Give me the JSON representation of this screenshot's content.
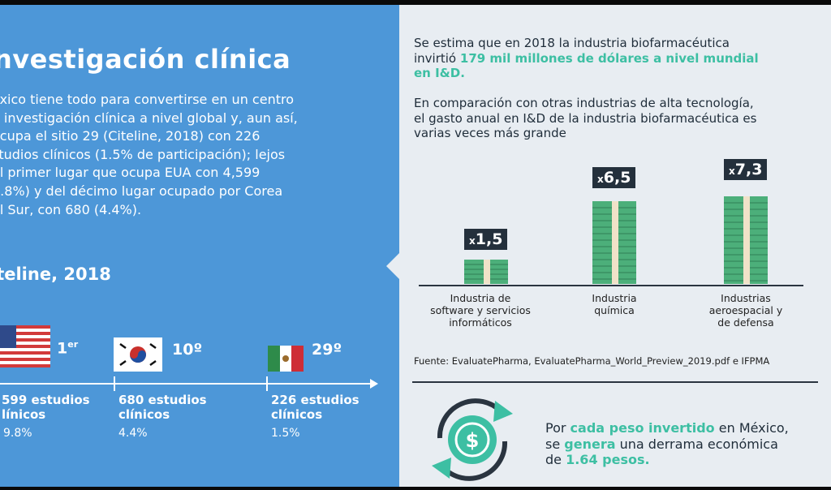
{
  "left": {
    "title": "nvestigación clínica",
    "paragraph_lines": [
      "éxico tiene todo para convertirse en un centro",
      "e investigación clínica a nivel global y, aun así,",
      "ocupa el sitio 29 (Citeline, 2018) con 226",
      "studios clínicos (1.5% de participación); lejos",
      "el primer lugar que ocupa EUA con 4,599",
      "9.8%) y del décimo lugar ocupado por Corea",
      "el Sur, con 680 (4.4%)."
    ],
    "subtitle": "iteline, 2018",
    "ranks": [
      {
        "rank": "1",
        "sup": "er",
        "studies_line1": "599 estudios",
        "studies_line2": "línicos",
        "pct": "9.8%"
      },
      {
        "rank": "10º",
        "sup": "",
        "studies_line1": "680 estudios",
        "studies_line2": "clínicos",
        "pct": "4.4%"
      },
      {
        "rank": "29º",
        "sup": "",
        "studies_line1": "226 estudios",
        "studies_line2": "clínicos",
        "pct": "1.5%"
      }
    ]
  },
  "right": {
    "intro_line1": "Se estima que en 2018 la industria biofarmacéutica",
    "intro_line2_pre": "invirtió ",
    "intro_line2_hl": "179 mil millones de dólares a nivel mundial",
    "intro_line3_hl": "en I&D.",
    "compare_lines": [
      "En comparación con otras industrias de alta tecnología,",
      "el gasto anual en I&D de la industria biofarmacéutica es",
      "varias veces más grande"
    ],
    "bars": [
      {
        "prefix": "x",
        "value": "1,5",
        "label_lines": [
          "Industria de",
          "software y servicios",
          "informáticos"
        ]
      },
      {
        "prefix": "x",
        "value": "6,5",
        "label_lines": [
          "Industria",
          "química"
        ]
      },
      {
        "prefix": "x",
        "value": "7,3",
        "label_lines": [
          "Industrias",
          "aeroespacial y",
          "de defensa"
        ]
      }
    ],
    "source": "Fuente: EvaluatePharma, EvaluatePharma_World_Preview_2019.pdf e IFPMA",
    "bottom": {
      "l1_pre": "Por ",
      "l1_hl": "cada peso invertido",
      "l1_post": " en México,",
      "l2_pre": "se ",
      "l2_hl": "genera",
      "l2_post": " una derrama económica",
      "l3_pre": "de ",
      "l3_hl": "1.64 pesos."
    }
  },
  "colors": {
    "left_bg": "#4d97d8",
    "right_bg": "#e8edf2",
    "accent": "#3dbfa3",
    "badge": "#24303c",
    "money": "#4caf7a"
  },
  "icons": [
    "usa-flag-icon",
    "korea-flag-icon",
    "mexico-flag-icon",
    "money-stack-icon",
    "dollar-cycle-icon"
  ]
}
